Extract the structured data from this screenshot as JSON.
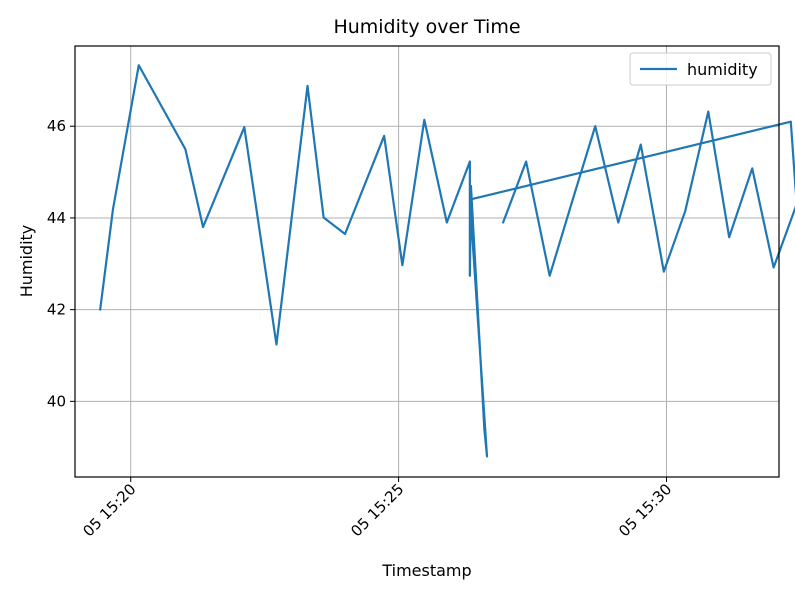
{
  "chart_data": {
    "type": "line",
    "title": "Humidity over Time",
    "xlabel": "Timestamp",
    "ylabel": "Humidity",
    "x_ticks": [
      "05 15:20",
      "05 15:25",
      "05 15:30"
    ],
    "x_tick_minutes": [
      20,
      25,
      30
    ],
    "y_ticks": [
      "40",
      "42",
      "44",
      "46"
    ],
    "y_tick_values": [
      40,
      42,
      44,
      46
    ],
    "xlim_minutes": [
      18.96,
      32.1
    ],
    "ylim": [
      38.35,
      47.75
    ],
    "grid": true,
    "legend_position": "upper right",
    "series": [
      {
        "name": "humidity",
        "color": "#1f77b4",
        "minutes": [
          19.43,
          19.67,
          20.15,
          21.02,
          21.35,
          22.12,
          22.72,
          23.3,
          23.6,
          24.0,
          24.73,
          25.07,
          25.48,
          25.9,
          26.33,
          26.33,
          26.35,
          26.6,
          26.65,
          26.33,
          32.32,
          32.43,
          32.0,
          31.6,
          31.17,
          30.78,
          30.35,
          29.95,
          29.52,
          29.1,
          28.67,
          28.25,
          27.82,
          27.38,
          26.95
        ],
        "values": [
          42.0,
          44.2,
          47.33,
          45.5,
          43.8,
          45.98,
          41.24,
          46.88,
          44.01,
          43.65,
          45.79,
          42.97,
          46.14,
          43.9,
          45.23,
          42.74,
          44.7,
          39.4,
          38.8,
          44.4,
          46.1,
          44.3,
          42.92,
          45.08,
          43.58,
          46.32,
          44.15,
          42.83,
          45.6,
          43.9,
          46.0,
          44.4,
          42.74,
          45.23,
          43.9
        ]
      }
    ]
  }
}
